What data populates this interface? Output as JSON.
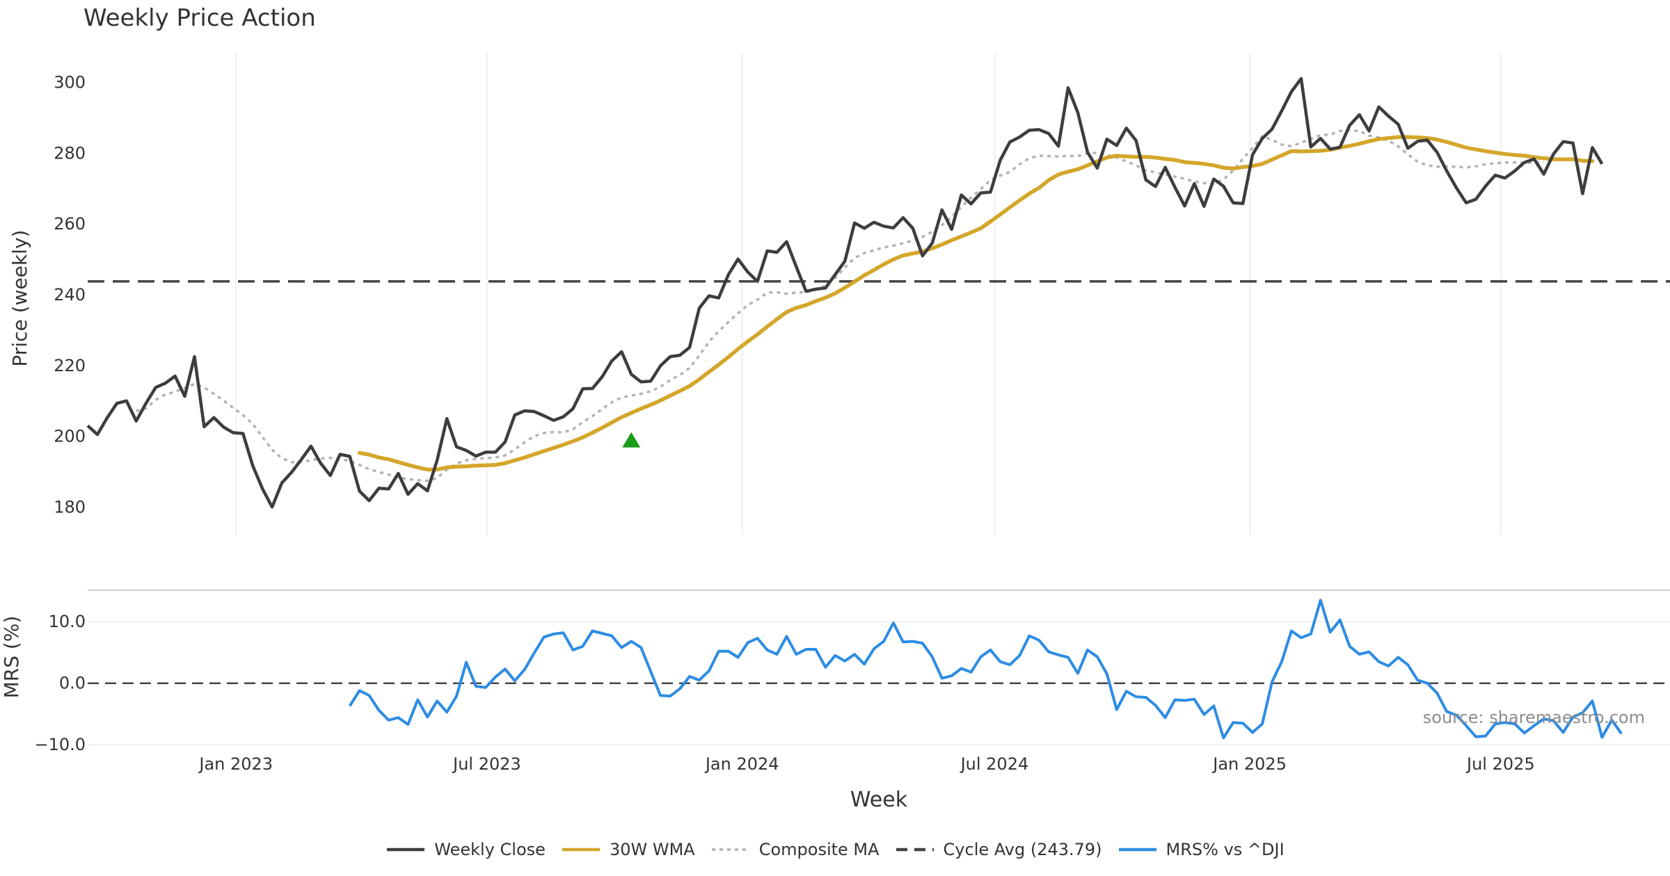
{
  "title": "Weekly Price Action",
  "source": "source: sharemaestro.com",
  "colors": {
    "close": "#3d3d3d",
    "wma": "#d4a62a",
    "composite": "#b3b3b3",
    "cycle": "#444444",
    "mrs": "#2d8ce3",
    "signal": "#1a9e1a",
    "grid": "#eef0f4"
  },
  "legend": [
    {
      "label": "Weekly Close",
      "style": "solid",
      "color": "#3d3d3d"
    },
    {
      "label": "30W WMA",
      "style": "solid",
      "color": "#d4a62a"
    },
    {
      "label": "Composite MA",
      "style": "dotted",
      "color": "#b3b3b3"
    },
    {
      "label": "Cycle Avg (243.79)",
      "style": "dashed",
      "color": "#444444"
    },
    {
      "label": "MRS% vs ^DJI",
      "style": "solid",
      "color": "#2d8ce3"
    }
  ],
  "chart_data": {
    "type": "line",
    "x_dates": [
      "2022-09-16",
      "2022-09-23",
      "2022-09-30",
      "2022-10-07",
      "2022-10-14",
      "2022-10-21",
      "2022-10-28",
      "2022-11-04",
      "2022-11-11",
      "2022-11-18",
      "2022-11-25",
      "2022-12-02",
      "2022-12-09",
      "2022-12-16",
      "2022-12-23",
      "2022-12-30",
      "2023-01-06",
      "2023-01-13",
      "2023-01-20",
      "2023-01-27",
      "2023-02-03",
      "2023-02-10",
      "2023-02-17",
      "2023-02-24",
      "2023-03-03",
      "2023-03-10",
      "2023-03-17",
      "2023-03-24",
      "2023-03-31",
      "2023-04-07",
      "2023-04-14",
      "2023-04-21",
      "2023-04-28",
      "2023-05-05",
      "2023-05-12",
      "2023-05-19",
      "2023-05-26",
      "2023-06-02",
      "2023-06-09",
      "2023-06-16",
      "2023-06-23",
      "2023-06-30",
      "2023-07-07",
      "2023-07-14",
      "2023-07-21",
      "2023-07-28",
      "2023-08-04",
      "2023-08-11",
      "2023-08-18",
      "2023-08-25",
      "2023-09-01",
      "2023-09-08",
      "2023-09-15",
      "2023-09-22",
      "2023-09-29",
      "2023-10-06",
      "2023-10-13",
      "2023-10-20",
      "2023-10-27",
      "2023-11-03",
      "2023-11-10",
      "2023-11-17",
      "2023-11-24",
      "2023-12-01",
      "2023-12-08",
      "2023-12-15",
      "2023-12-22",
      "2023-12-29",
      "2024-01-05",
      "2024-01-12",
      "2024-01-19",
      "2024-01-26",
      "2024-02-02",
      "2024-02-09",
      "2024-02-16",
      "2024-02-23",
      "2024-03-01",
      "2024-03-08",
      "2024-03-15",
      "2024-03-22",
      "2024-03-29",
      "2024-04-05",
      "2024-04-12",
      "2024-04-19",
      "2024-04-26",
      "2024-05-03",
      "2024-05-10",
      "2024-05-17",
      "2024-05-24",
      "2024-05-31",
      "2024-06-07",
      "2024-06-14",
      "2024-06-21",
      "2024-06-28",
      "2024-07-05",
      "2024-07-12",
      "2024-07-19",
      "2024-07-26",
      "2024-08-02",
      "2024-08-09",
      "2024-08-16",
      "2024-08-23",
      "2024-08-30",
      "2024-09-06",
      "2024-09-13",
      "2024-09-20",
      "2024-09-27",
      "2024-10-04",
      "2024-10-11",
      "2024-10-18",
      "2024-10-25",
      "2024-11-01",
      "2024-11-08",
      "2024-11-15",
      "2024-11-22",
      "2024-11-29",
      "2024-12-06",
      "2024-12-13",
      "2024-12-20",
      "2024-12-27",
      "2025-01-03",
      "2025-01-10",
      "2025-01-17",
      "2025-01-24",
      "2025-01-31",
      "2025-02-07",
      "2025-02-14",
      "2025-02-21",
      "2025-02-28",
      "2025-03-07",
      "2025-03-14",
      "2025-03-21",
      "2025-03-28",
      "2025-04-04",
      "2025-04-11",
      "2025-04-18",
      "2025-04-25",
      "2025-05-02",
      "2025-05-09",
      "2025-05-16",
      "2025-05-23",
      "2025-05-30",
      "2025-06-06",
      "2025-06-13",
      "2025-06-20",
      "2025-06-27",
      "2025-07-04",
      "2025-07-11",
      "2025-07-18",
      "2025-07-25",
      "2025-08-01",
      "2025-08-08",
      "2025-08-15",
      "2025-08-22",
      "2025-08-29",
      "2025-09-05",
      "2025-09-12",
      "2025-09-19",
      "2025-09-26",
      "2025-10-03",
      "2025-10-10",
      "2025-10-17",
      "2025-10-24",
      "2025-10-31"
    ],
    "weekly_close": [
      203.0,
      200.5,
      205.2,
      209.3,
      210.0,
      204.3,
      209.3,
      213.8,
      215.0,
      217.0,
      211.3,
      222.5,
      202.7,
      205.3,
      202.6,
      201.0,
      200.8,
      191.7,
      185.2,
      180.0,
      186.8,
      189.8,
      193.4,
      197.2,
      192.4,
      188.9,
      194.9,
      194.3,
      184.5,
      181.8,
      185.3,
      185.1,
      189.5,
      183.6,
      186.6,
      184.6,
      193.2,
      205.0,
      197.0,
      196.0,
      194.4,
      195.5,
      195.5,
      198.4,
      206.0,
      207.2,
      207.0,
      205.8,
      204.5,
      205.5,
      207.8,
      213.4,
      213.5,
      216.8,
      221.3,
      223.9,
      217.5,
      215.4,
      215.6,
      219.9,
      222.5,
      222.9,
      225.1,
      236.2,
      239.7,
      239.1,
      245.7,
      250.1,
      246.4,
      243.8,
      252.4,
      252.0,
      255.0,
      247.9,
      241.0,
      241.6,
      241.9,
      245.7,
      249.5,
      260.3,
      258.8,
      260.5,
      259.4,
      258.9,
      261.8,
      258.8,
      251.0,
      254.6,
      264.0,
      258.5,
      268.2,
      265.7,
      268.8,
      269.0,
      278.0,
      283.2,
      284.6,
      286.5,
      286.7,
      285.6,
      282.0,
      298.5,
      291.5,
      280.3,
      275.8,
      284.0,
      282.2,
      287.1,
      283.6,
      272.5,
      270.6,
      276.0,
      270.4,
      265.1,
      271.4,
      265.0,
      272.7,
      270.7,
      266.0,
      265.8,
      279.6,
      284.2,
      286.8,
      292.0,
      297.4,
      301.1,
      281.8,
      284.2,
      281.2,
      281.7,
      287.9,
      290.9,
      286.3,
      293.1,
      290.5,
      288.2,
      281.4,
      283.4,
      283.7,
      280.3,
      275.0,
      270.2,
      266.0,
      267.0,
      270.7,
      273.8,
      273.0,
      275.0,
      277.4,
      278.4,
      274.1,
      279.8,
      283.3,
      282.9,
      268.6,
      281.6,
      277.0
    ],
    "wma_30w": [
      null,
      null,
      null,
      null,
      null,
      null,
      null,
      null,
      null,
      null,
      null,
      null,
      null,
      null,
      null,
      null,
      null,
      null,
      null,
      null,
      null,
      null,
      null,
      null,
      null,
      null,
      null,
      null,
      195.3,
      194.8,
      194.0,
      193.5,
      192.7,
      191.9,
      191.2,
      190.6,
      190.6,
      191.2,
      191.4,
      191.5,
      191.7,
      191.8,
      191.9,
      192.4,
      193.2,
      194.0,
      194.9,
      195.8,
      196.7,
      197.6,
      198.6,
      199.7,
      201.0,
      202.4,
      203.9,
      205.4,
      206.6,
      207.8,
      208.9,
      210.1,
      211.5,
      212.8,
      214.2,
      216.1,
      218.2,
      220.2,
      222.4,
      224.7,
      226.8,
      228.8,
      231.0,
      233.1,
      235.1,
      236.3,
      237.1,
      238.2,
      239.2,
      240.4,
      242.0,
      243.7,
      245.5,
      247.0,
      248.6,
      250.0,
      251.1,
      251.7,
      252.2,
      253.1,
      254.2,
      255.4,
      256.5,
      257.6,
      258.8,
      260.7,
      262.7,
      264.7,
      266.7,
      268.6,
      270.2,
      272.4,
      274.0,
      274.8,
      275.5,
      276.6,
      277.7,
      278.8,
      279.3,
      279.1,
      279.0,
      279.0,
      278.8,
      278.4,
      278.1,
      277.5,
      277.3,
      277.0,
      276.6,
      275.9,
      275.7,
      276.1,
      276.4,
      277.0,
      278.2,
      279.4,
      280.6,
      280.5,
      280.6,
      280.7,
      281.0,
      281.6,
      282.1,
      282.7,
      283.4,
      284.0,
      284.3,
      284.6,
      284.6,
      284.5,
      284.3,
      283.9,
      283.2,
      282.4,
      281.6,
      281.1,
      280.6,
      280.2,
      279.8,
      279.5,
      279.3,
      278.9,
      278.6,
      278.3,
      278.3,
      278.3,
      277.9,
      277.8
    ],
    "composite_ma": [
      null,
      null,
      null,
      null,
      null,
      207.2,
      207.8,
      210.3,
      211.8,
      212.6,
      213.6,
      214.8,
      213.8,
      212.0,
      210.1,
      208.0,
      206.0,
      203.5,
      199.8,
      196.2,
      193.8,
      192.7,
      192.7,
      193.2,
      193.7,
      193.9,
      193.6,
      193.0,
      191.9,
      190.7,
      189.9,
      189.2,
      188.4,
      187.9,
      187.6,
      187.4,
      188.2,
      190.6,
      192.3,
      193.2,
      193.6,
      193.8,
      194.0,
      194.6,
      196.3,
      198.3,
      200.0,
      200.9,
      201.2,
      201.1,
      202.0,
      204.0,
      205.7,
      207.7,
      209.6,
      211.0,
      211.5,
      212.0,
      212.7,
      214.0,
      215.9,
      217.3,
      219.3,
      222.8,
      226.7,
      229.7,
      232.3,
      234.8,
      237.1,
      238.6,
      240.6,
      240.7,
      240.3,
      240.6,
      240.8,
      241.4,
      242.6,
      244.8,
      247.7,
      250.4,
      251.8,
      252.6,
      253.4,
      253.9,
      254.6,
      255.3,
      256.4,
      257.8,
      259.7,
      262.0,
      264.9,
      267.4,
      269.9,
      272.4,
      273.7,
      274.7,
      276.9,
      278.6,
      279.3,
      279.2,
      279.1,
      279.3,
      279.2,
      280.0,
      280.1,
      279.5,
      278.8,
      277.7,
      276.6,
      275.2,
      274.6,
      274.0,
      273.4,
      272.8,
      272.0,
      271.6,
      271.4,
      272.6,
      275.1,
      278.4,
      281.5,
      284.8,
      283.8,
      282.5,
      282.0,
      283.0,
      284.1,
      285.1,
      285.3,
      286.3,
      286.5,
      286.3,
      285.0,
      284.5,
      283.6,
      281.9,
      279.7,
      277.6,
      276.6,
      276.2,
      276.3,
      276.2,
      276.0,
      276.3,
      276.9,
      277.2,
      277.4,
      277.4,
      277.3,
      277.4,
      277.5
    ],
    "cycle_avg": 243.79,
    "signal_marker": {
      "x": "2023-10-13",
      "y": 198.8,
      "shape": "triangle-up"
    },
    "mrs_pct": [
      null,
      null,
      null,
      null,
      null,
      null,
      null,
      null,
      null,
      null,
      null,
      null,
      null,
      null,
      null,
      null,
      null,
      null,
      null,
      null,
      null,
      null,
      null,
      null,
      null,
      null,
      null,
      -3.7,
      -1.2,
      -2.0,
      -4.4,
      -6.0,
      -5.6,
      -6.7,
      -2.7,
      -5.5,
      -2.9,
      -4.7,
      -2.1,
      3.4,
      -0.5,
      -0.7,
      1.0,
      2.3,
      0.4,
      2.2,
      4.9,
      7.5,
      8.0,
      8.2,
      5.4,
      6.0,
      8.5,
      8.1,
      7.7,
      5.8,
      6.8,
      5.8,
      1.9,
      -2.0,
      -2.1,
      -0.9,
      1.1,
      0.5,
      2.0,
      5.2,
      5.2,
      4.2,
      6.6,
      7.3,
      5.4,
      4.7,
      7.6,
      4.7,
      5.5,
      5.5,
      2.6,
      4.5,
      3.6,
      4.7,
      3.1,
      5.6,
      6.8,
      9.8,
      6.7,
      6.8,
      6.5,
      4.3,
      0.8,
      1.2,
      2.4,
      1.8,
      4.3,
      5.4,
      3.5,
      3.0,
      4.5,
      7.7,
      7.0,
      5.1,
      4.6,
      4.2,
      1.6,
      5.4,
      4.3,
      1.5,
      -4.3,
      -1.3,
      -2.2,
      -2.3,
      -3.6,
      -5.6,
      -2.7,
      -2.8,
      -2.6,
      -5.1,
      -3.7,
      -8.9,
      -6.4,
      -6.5,
      -8.0,
      -6.6,
      0.2,
      3.5,
      8.5,
      7.4,
      8.0,
      13.5,
      8.3,
      10.3,
      6.0,
      4.7,
      5.1,
      3.5,
      2.8,
      4.2,
      3.0,
      0.5,
      0.0,
      -1.6,
      -4.6,
      -5.2,
      -6.9,
      -8.7,
      -8.6,
      -6.6,
      -6.4,
      -6.6,
      -8.1,
      -6.9,
      -5.8,
      -6.1,
      -8.0,
      -5.5,
      -4.8,
      -2.9,
      -8.8,
      -6.0,
      -8.2
    ],
    "price_axis": {
      "label": "Price (weekly)",
      "ylim": [
        172,
        308
      ],
      "ticks": [
        "180",
        "200",
        "220",
        "240",
        "260",
        "280",
        "300"
      ]
    },
    "mrs_axis": {
      "label": "MRS (%)",
      "ylim": [
        -11,
        15
      ],
      "ticks": [
        "−10.0",
        "0.0",
        "10.0"
      ]
    },
    "x_axis": {
      "label": "Week",
      "ticks": [
        {
          "date": "2023-01-01",
          "label": "Jan 2023"
        },
        {
          "date": "2023-07-01",
          "label": "Jul 2023"
        },
        {
          "date": "2024-01-01",
          "label": "Jan 2024"
        },
        {
          "date": "2024-07-01",
          "label": "Jul 2024"
        },
        {
          "date": "2025-01-01",
          "label": "Jan 2025"
        },
        {
          "date": "2025-07-01",
          "label": "Jul 2025"
        }
      ]
    },
    "grid": true,
    "legend_position": "bottom"
  }
}
